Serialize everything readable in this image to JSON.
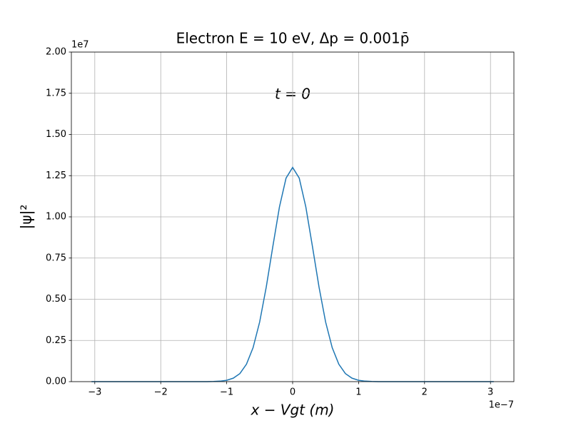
{
  "chart_data": {
    "type": "line",
    "title": "Electron E = 10 eV, Δp = 0.001p̄",
    "annotation": "t = 0",
    "xlabel": "x − Vgt (m)",
    "ylabel": "|ψ|²",
    "x_offset_label": "1e−7",
    "y_offset_label": "1e7",
    "x": [
      -3.05,
      -1.3,
      -1.2,
      -1.1,
      -1.0,
      -0.9,
      -0.8,
      -0.7,
      -0.6,
      -0.5,
      -0.4,
      -0.3,
      -0.2,
      -0.1,
      0,
      0.1,
      0.2,
      0.3,
      0.4,
      0.5,
      0.6,
      0.7,
      0.8,
      0.9,
      1.0,
      1.1,
      1.2,
      1.3,
      3.05
    ],
    "series": [
      {
        "color": "#1f77b4",
        "values": [
          0,
          0,
          0.001,
          0.003,
          0.008,
          0.021,
          0.049,
          0.106,
          0.206,
          0.362,
          0.574,
          0.821,
          1.06,
          1.235,
          1.3,
          1.235,
          1.06,
          0.821,
          0.574,
          0.362,
          0.206,
          0.106,
          0.049,
          0.021,
          0.008,
          0.003,
          0.001,
          0,
          0
        ]
      }
    ],
    "xlim": [
      -3.355,
      3.355
    ],
    "ylim": [
      0,
      2
    ],
    "xticks": [
      {
        "value": -3,
        "label": "−3"
      },
      {
        "value": -2,
        "label": "−2"
      },
      {
        "value": -1,
        "label": "−1"
      },
      0,
      1,
      2,
      3
    ],
    "yticks": [
      {
        "value": 0,
        "label": "0.00"
      },
      {
        "value": 0.25,
        "label": "0.25"
      },
      {
        "value": 0.5,
        "label": "0.50"
      },
      {
        "value": 0.75,
        "label": "0.75"
      },
      {
        "value": 1,
        "label": "1.00"
      },
      {
        "value": 1.25,
        "label": "1.25"
      },
      {
        "value": 1.5,
        "label": "1.50"
      },
      {
        "value": 1.75,
        "label": "1.75"
      },
      {
        "value": 2,
        "label": "2.00"
      }
    ],
    "grid": true
  }
}
